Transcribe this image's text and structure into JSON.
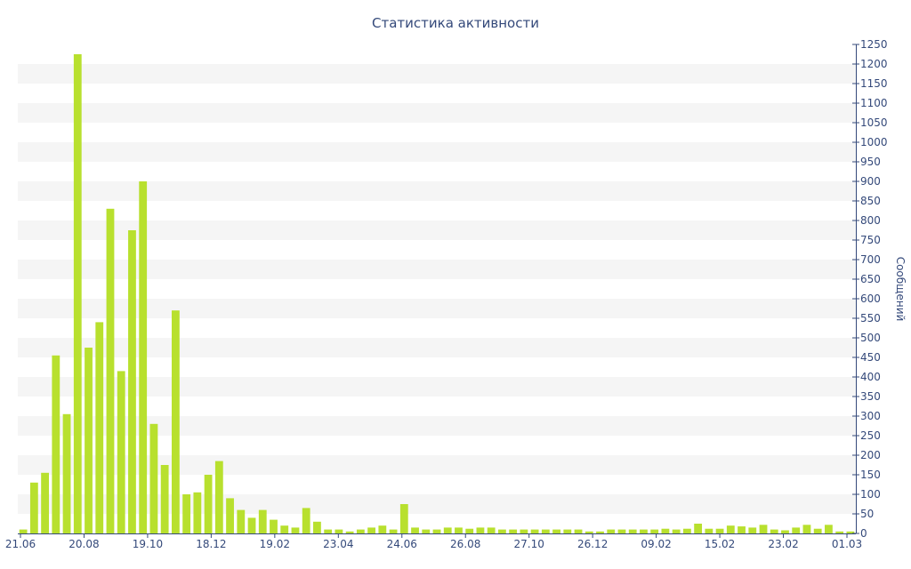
{
  "chart_data": {
    "type": "bar",
    "title": "Статистика активности",
    "xlabel": "",
    "ylabel": "Сообщений",
    "ylim": [
      0,
      1250
    ],
    "y_ticks": [
      0,
      50,
      100,
      150,
      200,
      250,
      300,
      350,
      400,
      450,
      500,
      550,
      600,
      650,
      700,
      750,
      800,
      850,
      900,
      950,
      1000,
      1050,
      1100,
      1150,
      1200,
      1250
    ],
    "y_axis_side": "right",
    "grid": "horizontal alternating bands",
    "x_tick_labels": [
      "21.06",
      "20.08",
      "19.10",
      "18.12",
      "19.02",
      "23.04",
      "24.06",
      "26.08",
      "27.10",
      "26.12",
      "09.02",
      "15.02",
      "23.02",
      "01.03"
    ],
    "bar_color": "#b8e02e",
    "band_color": "#f5f5f5",
    "axis_color": "#34497a",
    "values": [
      10,
      130,
      155,
      455,
      305,
      1225,
      475,
      540,
      830,
      415,
      775,
      900,
      280,
      175,
      570,
      100,
      105,
      150,
      185,
      90,
      60,
      40,
      60,
      35,
      20,
      15,
      65,
      30,
      10,
      10,
      5,
      10,
      15,
      20,
      10,
      75,
      15,
      10,
      10,
      15,
      15,
      12,
      15,
      15,
      10,
      10,
      10,
      10,
      10,
      10,
      10,
      10,
      5,
      5,
      10,
      10,
      10,
      10,
      10,
      12,
      10,
      12,
      25,
      12,
      12,
      20,
      18,
      15,
      22,
      10,
      8,
      15,
      22,
      12,
      22,
      5,
      5
    ]
  }
}
